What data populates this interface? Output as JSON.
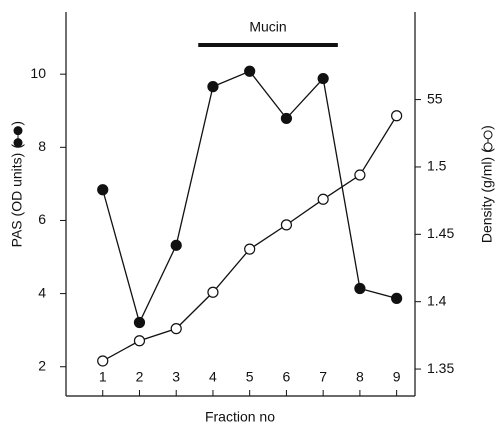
{
  "chart_data": {
    "type": "line",
    "xlabel": "Fraction no",
    "ylabel": "PAS (OD units)",
    "y2label": "Density (g/ml)",
    "x": [
      1,
      2,
      3,
      4,
      5,
      6,
      7,
      8,
      9
    ],
    "xlim": [
      0,
      9.5
    ],
    "xticks": [
      1,
      2,
      3,
      4,
      5,
      6,
      7,
      8,
      9
    ],
    "ylim": [
      1.2,
      11.7
    ],
    "yticks": [
      2,
      4,
      6,
      8,
      10
    ],
    "y2lim": [
      1.33,
      1.615
    ],
    "y2ticks": [
      1.35,
      1.4,
      1.45,
      1.5,
      {
        "value": 1.55,
        "label": "55"
      }
    ],
    "series": [
      {
        "color": "#111111",
        "marker": "filled",
        "axis": "y",
        "values": [
          6.84,
          3.21,
          5.32,
          9.66,
          10.08,
          8.79,
          9.88,
          4.14,
          3.87
        ]
      },
      {
        "color": "#111111",
        "marker": "open",
        "axis": "y2",
        "values": [
          1.356,
          1.371,
          1.38,
          1.407,
          1.439,
          1.457,
          1.476,
          1.494,
          1.538
        ]
      }
    ],
    "annotations": [
      {
        "text": "Mucin",
        "x_start": 3.6,
        "x_end": 7.4
      }
    ]
  }
}
